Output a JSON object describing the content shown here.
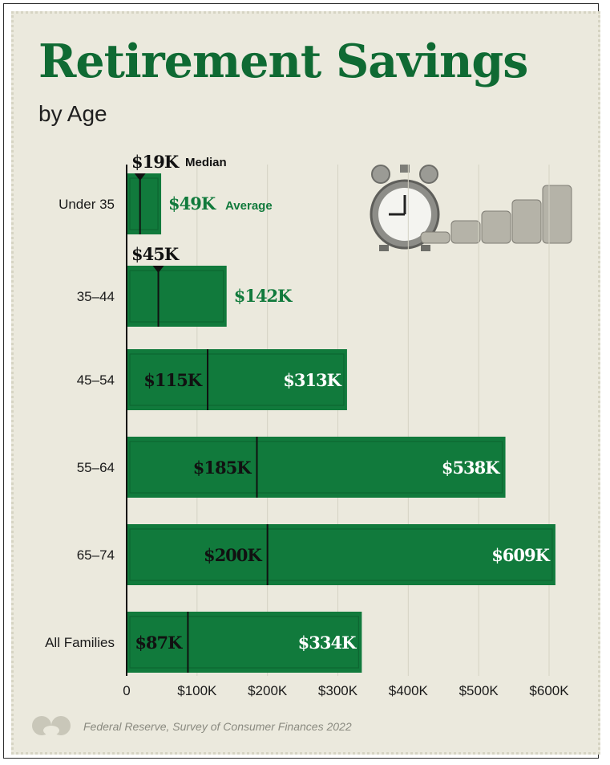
{
  "header": {
    "title": "Retirement Savings",
    "subtitle": "by Age"
  },
  "footer": {
    "source": "Federal Reserve, Survey of Consumer Finances 2022"
  },
  "annotations": {
    "median_label": "Median",
    "average_label": "Average"
  },
  "colors": {
    "bar": "#117a3c",
    "bar_dark": "#0d6631",
    "title": "#0f6a33",
    "median_line": "#111111"
  },
  "chart_data": {
    "type": "bar",
    "orientation": "horizontal",
    "title": "Retirement Savings",
    "subtitle": "by Age",
    "categories": [
      "Under 35",
      "35–44",
      "45–54",
      "55–64",
      "65–74",
      "All Families"
    ],
    "series": [
      {
        "name": "Average",
        "values": [
          49,
          142,
          313,
          538,
          609,
          334
        ],
        "labels": [
          "$49K",
          "$142K",
          "$313K",
          "$538K",
          "$609K",
          "$334K"
        ]
      },
      {
        "name": "Median",
        "values": [
          19,
          45,
          115,
          185,
          200,
          87
        ],
        "labels": [
          "$19K",
          "$45K",
          "$115K",
          "$185K",
          "$200K",
          "$87K"
        ]
      }
    ],
    "xlim": [
      0,
      600
    ],
    "x_ticks": [
      0,
      100,
      200,
      300,
      400,
      500,
      600
    ],
    "x_tick_labels": [
      "0",
      "$100K",
      "$200K",
      "$300K",
      "$400K",
      "$500K",
      "$600K"
    ],
    "unit": "thousands of dollars",
    "grid": true,
    "source": "Federal Reserve, Survey of Consumer Finances 2022"
  }
}
